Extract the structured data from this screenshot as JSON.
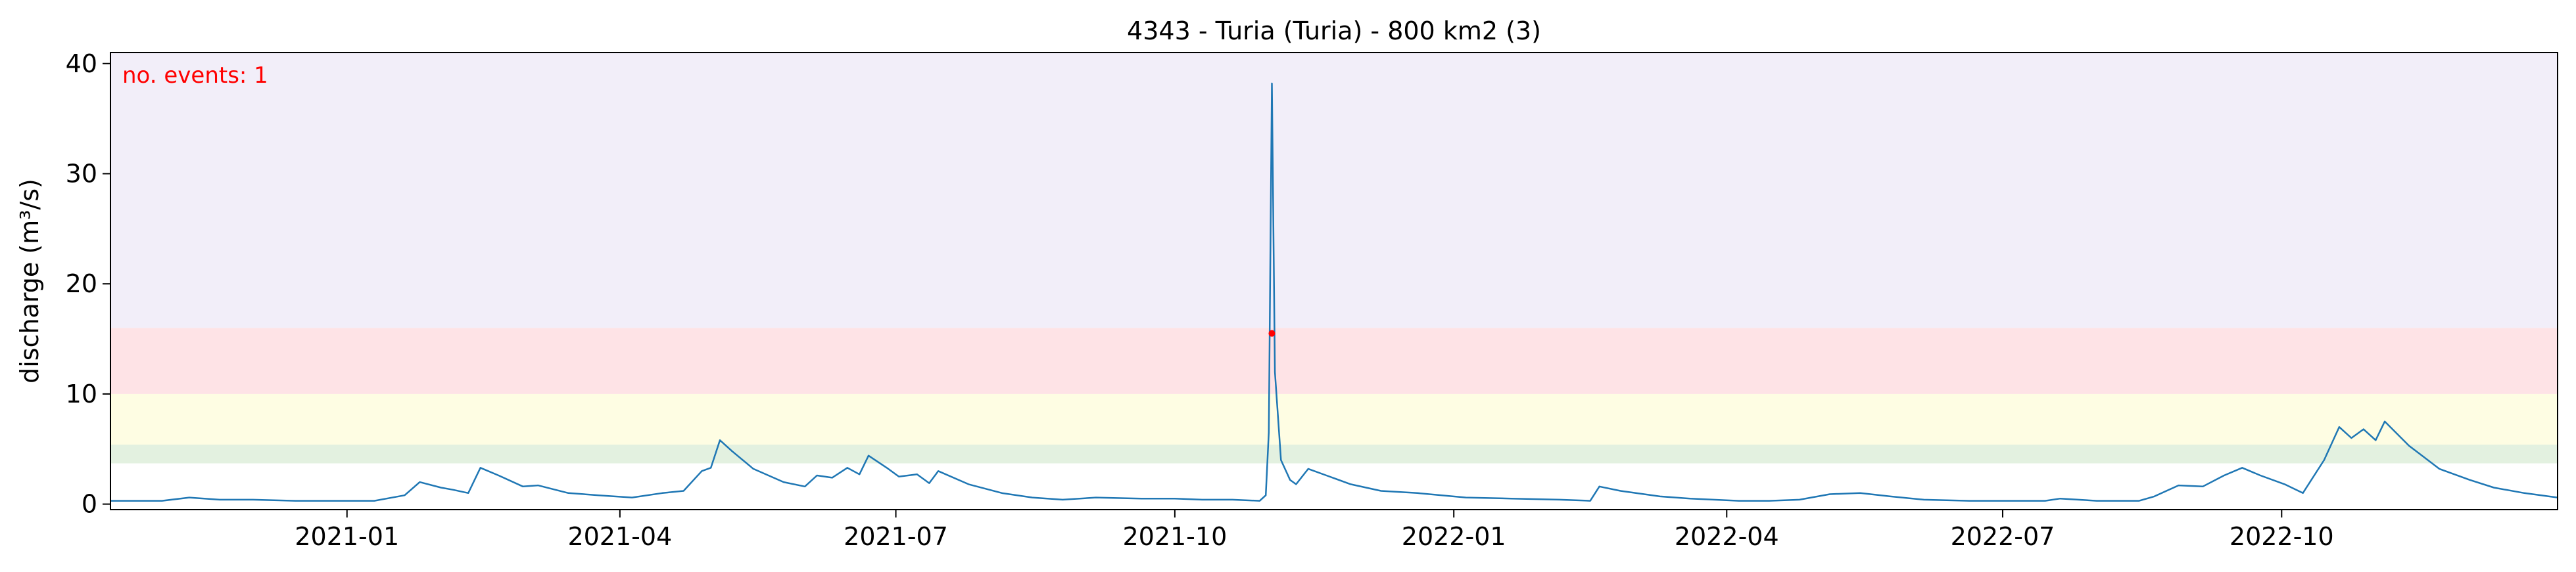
{
  "chart_data": {
    "type": "line",
    "title": "4343 - Turia (Turia) - 800 km2 (3)",
    "xlabel": "",
    "ylabel": "discharge (m³/s)",
    "xlim": [
      "2020-10-15",
      "2022-12-31"
    ],
    "ylim": [
      -0.5,
      41
    ],
    "y_ticks": [
      0,
      10,
      20,
      30,
      40
    ],
    "x_ticks": [
      "2021-01",
      "2021-04",
      "2021-07",
      "2021-10",
      "2022-01",
      "2022-04",
      "2022-07",
      "2022-10"
    ],
    "grid": false,
    "threshold_bands": [
      {
        "from": 3.7,
        "to": 5.4,
        "color": "#e3f1e0"
      },
      {
        "from": 5.4,
        "to": 10.0,
        "color": "#fefde3"
      },
      {
        "from": 10.0,
        "to": 16.0,
        "color": "#fee3e6"
      },
      {
        "from": 16.0,
        "to": 41.0,
        "color": "#f2eef9"
      }
    ],
    "series": [
      {
        "color": "#1f77b4",
        "points": [
          [
            "2020-10-15",
            0.3
          ],
          [
            "2020-11-01",
            0.3
          ],
          [
            "2020-11-10",
            0.6
          ],
          [
            "2020-11-20",
            0.4
          ],
          [
            "2020-12-01",
            0.4
          ],
          [
            "2020-12-15",
            0.3
          ],
          [
            "2021-01-10",
            0.3
          ],
          [
            "2021-01-20",
            0.8
          ],
          [
            "2021-01-25",
            2.0
          ],
          [
            "2021-02-01",
            1.5
          ],
          [
            "2021-02-05",
            1.3
          ],
          [
            "2021-02-10",
            1.0
          ],
          [
            "2021-02-14",
            3.3
          ],
          [
            "2021-02-20",
            2.6
          ],
          [
            "2021-02-28",
            1.6
          ],
          [
            "2021-03-05",
            1.7
          ],
          [
            "2021-03-15",
            1.0
          ],
          [
            "2021-03-25",
            0.8
          ],
          [
            "2021-04-05",
            0.6
          ],
          [
            "2021-04-15",
            1.0
          ],
          [
            "2021-04-22",
            1.2
          ],
          [
            "2021-04-28",
            3.0
          ],
          [
            "2021-05-01",
            3.3
          ],
          [
            "2021-05-04",
            5.8
          ],
          [
            "2021-05-08",
            4.8
          ],
          [
            "2021-05-15",
            3.2
          ],
          [
            "2021-05-25",
            2.0
          ],
          [
            "2021-06-01",
            1.6
          ],
          [
            "2021-06-05",
            2.6
          ],
          [
            "2021-06-10",
            2.4
          ],
          [
            "2021-06-15",
            3.3
          ],
          [
            "2021-06-19",
            2.7
          ],
          [
            "2021-06-22",
            4.4
          ],
          [
            "2021-06-28",
            3.3
          ],
          [
            "2021-07-02",
            2.5
          ],
          [
            "2021-07-08",
            2.7
          ],
          [
            "2021-07-12",
            1.9
          ],
          [
            "2021-07-15",
            3.0
          ],
          [
            "2021-07-25",
            1.8
          ],
          [
            "2021-08-05",
            1.0
          ],
          [
            "2021-08-15",
            0.6
          ],
          [
            "2021-08-25",
            0.4
          ],
          [
            "2021-09-05",
            0.6
          ],
          [
            "2021-09-20",
            0.5
          ],
          [
            "2021-10-01",
            0.5
          ],
          [
            "2021-10-10",
            0.4
          ],
          [
            "2021-10-20",
            0.4
          ],
          [
            "2021-10-29",
            0.3
          ],
          [
            "2021-10-31",
            0.8
          ],
          [
            "2021-11-01",
            6.5
          ],
          [
            "2021-11-02",
            38.2
          ],
          [
            "2021-11-03",
            12.0
          ],
          [
            "2021-11-05",
            4.0
          ],
          [
            "2021-11-08",
            2.2
          ],
          [
            "2021-11-10",
            1.8
          ],
          [
            "2021-11-14",
            3.2
          ],
          [
            "2021-11-20",
            2.6
          ],
          [
            "2021-11-28",
            1.8
          ],
          [
            "2021-12-08",
            1.2
          ],
          [
            "2021-12-20",
            1.0
          ],
          [
            "2022-01-05",
            0.6
          ],
          [
            "2022-01-20",
            0.5
          ],
          [
            "2022-02-05",
            0.4
          ],
          [
            "2022-02-15",
            0.3
          ],
          [
            "2022-02-18",
            1.6
          ],
          [
            "2022-02-25",
            1.2
          ],
          [
            "2022-03-10",
            0.7
          ],
          [
            "2022-03-20",
            0.5
          ],
          [
            "2022-04-05",
            0.3
          ],
          [
            "2022-04-15",
            0.3
          ],
          [
            "2022-04-25",
            0.4
          ],
          [
            "2022-05-05",
            0.9
          ],
          [
            "2022-05-15",
            1.0
          ],
          [
            "2022-05-25",
            0.7
          ],
          [
            "2022-06-05",
            0.4
          ],
          [
            "2022-06-20",
            0.3
          ],
          [
            "2022-07-01",
            0.3
          ],
          [
            "2022-07-15",
            0.3
          ],
          [
            "2022-07-20",
            0.5
          ],
          [
            "2022-08-01",
            0.3
          ],
          [
            "2022-08-15",
            0.3
          ],
          [
            "2022-08-20",
            0.7
          ],
          [
            "2022-08-28",
            1.7
          ],
          [
            "2022-09-05",
            1.6
          ],
          [
            "2022-09-12",
            2.6
          ],
          [
            "2022-09-18",
            3.3
          ],
          [
            "2022-09-24",
            2.6
          ],
          [
            "2022-10-02",
            1.8
          ],
          [
            "2022-10-08",
            1.0
          ],
          [
            "2022-10-15",
            4.0
          ],
          [
            "2022-10-20",
            7.0
          ],
          [
            "2022-10-24",
            6.0
          ],
          [
            "2022-10-28",
            6.8
          ],
          [
            "2022-11-01",
            5.8
          ],
          [
            "2022-11-04",
            7.5
          ],
          [
            "2022-11-12",
            5.3
          ],
          [
            "2022-11-22",
            3.2
          ],
          [
            "2022-12-02",
            2.2
          ],
          [
            "2022-12-10",
            1.5
          ],
          [
            "2022-12-20",
            1.0
          ],
          [
            "2022-12-31",
            0.6
          ]
        ]
      }
    ],
    "event_markers": [
      {
        "x": "2021-11-02",
        "y": 15.5,
        "color": "#ff0000"
      }
    ],
    "annotation": {
      "text": "no. events: 1",
      "color": "#ff0000",
      "position": "top-left"
    }
  }
}
